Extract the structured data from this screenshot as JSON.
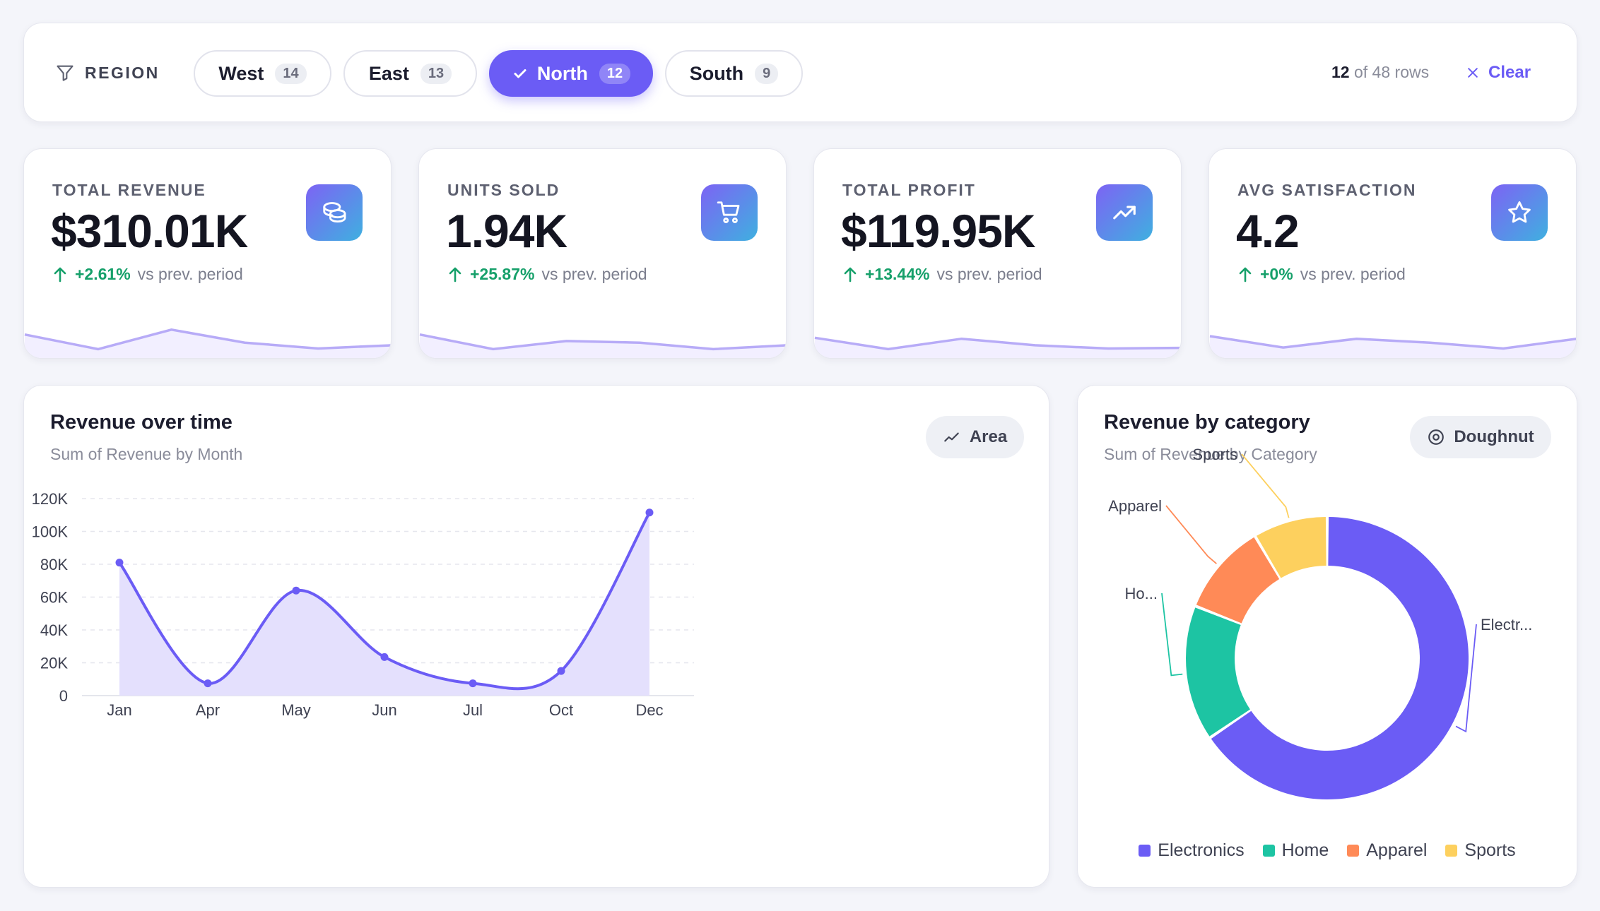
{
  "filter": {
    "label": "REGION",
    "chips": [
      {
        "label": "West",
        "count": "14",
        "active": false
      },
      {
        "label": "East",
        "count": "13",
        "active": false
      },
      {
        "label": "North",
        "count": "12",
        "active": true
      },
      {
        "label": "South",
        "count": "9",
        "active": false
      }
    ],
    "shown_rows": "12",
    "rows_suffix": "of 48 rows",
    "clear_label": "Clear"
  },
  "kpis": [
    {
      "label": "TOTAL REVENUE",
      "value": "$310.01K",
      "delta": "+2.61%",
      "delta_suffix": "vs prev. period",
      "icon": "coins-icon",
      "spark": [
        0.55,
        0.1,
        0.7,
        0.3,
        0.12,
        0.22
      ]
    },
    {
      "label": "UNITS SOLD",
      "value": "1.94K",
      "delta": "+25.87%",
      "delta_suffix": "vs prev. period",
      "icon": "cart-icon",
      "spark": [
        0.55,
        0.1,
        0.35,
        0.3,
        0.1,
        0.22
      ]
    },
    {
      "label": "TOTAL PROFIT",
      "value": "$119.95K",
      "delta": "+13.44%",
      "delta_suffix": "vs prev. period",
      "icon": "trending-up-icon",
      "spark": [
        0.45,
        0.1,
        0.42,
        0.22,
        0.12,
        0.14
      ]
    },
    {
      "label": "AVG SATISFACTION",
      "value": "4.2",
      "delta": "+0%",
      "delta_suffix": "vs prev. period",
      "icon": "star-icon",
      "spark": [
        0.5,
        0.15,
        0.42,
        0.3,
        0.12,
        0.42
      ]
    }
  ],
  "revenue_chart": {
    "title": "Revenue over time",
    "subtitle": "Sum of Revenue by Month",
    "toggle_label": "Area",
    "toggle_icon": "trend-line-icon",
    "accent": "#6b5cf5"
  },
  "category_chart": {
    "title": "Revenue by category",
    "subtitle": "Sum of Revenue by Category",
    "toggle_label": "Doughnut",
    "toggle_icon": "doughnut-icon"
  },
  "chart_data": [
    {
      "type": "area",
      "categories": [
        "Jan",
        "Apr",
        "May",
        "Jun",
        "Jul",
        "Oct",
        "Dec"
      ],
      "series": [
        {
          "values": [
            81000,
            7500,
            64000,
            23500,
            7500,
            15000,
            111500
          ]
        }
      ],
      "ylim": [
        0,
        120000
      ],
      "yticks": [
        0,
        20000,
        40000,
        60000,
        80000,
        100000,
        120000
      ],
      "ytick_labels": [
        "0",
        "20K",
        "40K",
        "60K",
        "80K",
        "100K",
        "120K"
      ],
      "grid": true
    },
    {
      "type": "pie",
      "style": "doughnut",
      "slices": [
        {
          "label": "Electronics",
          "short_label": "Electr...",
          "value": 65.5,
          "color": "#6b5cf5"
        },
        {
          "label": "Home",
          "short_label": "Ho...",
          "value": 15.5,
          "color": "#1dc4a3"
        },
        {
          "label": "Apparel",
          "short_label": "Apparel",
          "value": 10.5,
          "color": "#ff8a57"
        },
        {
          "label": "Sports",
          "short_label": "Sports",
          "value": 8.5,
          "color": "#fdd05e"
        }
      ],
      "legend": "bottom"
    }
  ]
}
